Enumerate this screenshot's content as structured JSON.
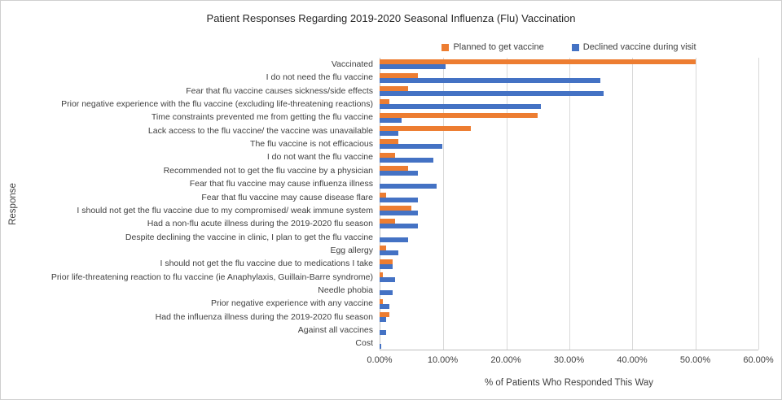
{
  "title": "Patient Responses Regarding 2019-2020 Seasonal Influenza (Flu) Vaccination",
  "legend": [
    {
      "label": "Planned to get vaccine",
      "color": "#ED7D31"
    },
    {
      "label": "Declined vaccine during visit",
      "color": "#4472C4"
    }
  ],
  "chart_data": {
    "type": "bar",
    "orientation": "horizontal",
    "title": "Patient Responses Regarding 2019-2020 Seasonal Influenza (Flu) Vaccination",
    "xlabel": "% of Patients Who Responded This Way",
    "ylabel": "Response",
    "xlim": [
      0,
      60
    ],
    "xtick_labels": [
      "0.00%",
      "10.00%",
      "20.00%",
      "30.00%",
      "40.00%",
      "50.00%",
      "60.00%"
    ],
    "grid": true,
    "legend_position": "top",
    "categories": [
      "Vaccinated",
      "I do not need the flu vaccine",
      "Fear that flu vaccine causes sickness/side effects",
      "Prior negative experience with the flu vaccine (excluding life-threatening reactions)",
      "Time constraints prevented me from getting the flu vaccine",
      "Lack access to the flu vaccine/ the vaccine was unavailable",
      "The flu vaccine is not efficacious",
      "I do not want the flu vaccine",
      "Recommended not to get the flu vaccine by a physician",
      "Fear that flu vaccine may cause influenza illness",
      "Fear that flu vaccine may cause disease flare",
      "I should not get the flu vaccine due to my compromised/ weak immune system",
      "Had a non-flu acute illness during the 2019-2020 flu season",
      "Despite declining the vaccine in clinic, I plan to get the flu vaccine",
      "Egg allergy",
      "I should not get the flu vaccine due to medications I take",
      "Prior life-threatening reaction to flu vaccine (ie Anaphylaxis, Guillain-Barre syndrome)",
      "Needle phobia",
      "Prior negative experience with any vaccine",
      "Had the influenza illness during the 2019-2020 flu season",
      "Against all vaccines",
      "Cost"
    ],
    "series": [
      {
        "name": "Planned to get vaccine",
        "color": "#ED7D31",
        "values": [
          50,
          6,
          4.5,
          1.5,
          25,
          14.5,
          3,
          2.5,
          4.5,
          0,
          1,
          5,
          2.5,
          0,
          1,
          2,
          0.5,
          0,
          0.5,
          1.5,
          0,
          0
        ]
      },
      {
        "name": "Declined vaccine during visit",
        "color": "#4472C4",
        "values": [
          10.5,
          35,
          35.5,
          25.5,
          3.5,
          3,
          10,
          8.5,
          6,
          9,
          6,
          6,
          6,
          4.5,
          3,
          2,
          2.5,
          2,
          1.5,
          1,
          1,
          0.3
        ]
      }
    ]
  }
}
